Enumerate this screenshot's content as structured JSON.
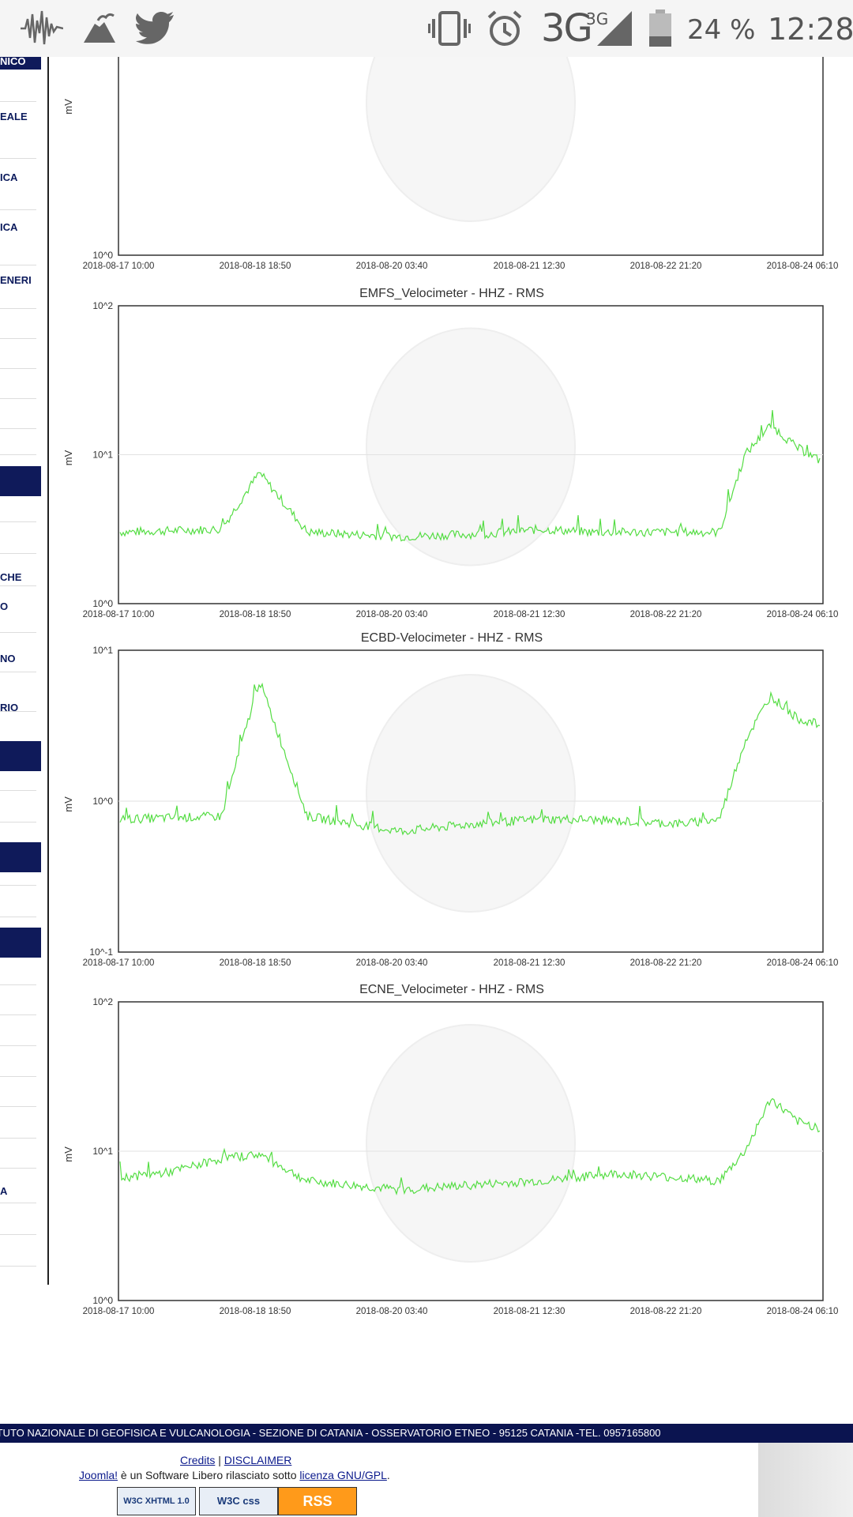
{
  "status_bar": {
    "network": "3G",
    "network_sup": "3G",
    "battery": "24 %",
    "time": "12:28",
    "icons": [
      "seismograph-icon",
      "volcano-icon",
      "twitter-icon",
      "vibrate-icon",
      "alarm-icon",
      "signal-icon",
      "battery-icon"
    ]
  },
  "sidebar": {
    "items": [
      {
        "label": "NICO",
        "y": 0
      },
      {
        "label": "EALE",
        "y": 1
      },
      {
        "label": "ICA",
        "y": 2
      },
      {
        "label": "ICA",
        "y": 3
      },
      {
        "label": "ENERI",
        "y": 4
      },
      {
        "label": "CHE",
        "y": 5
      },
      {
        "label": "O",
        "y": 6
      },
      {
        "label": "NO",
        "y": 7
      },
      {
        "label": "RIO",
        "y": 8
      },
      {
        "label": "A",
        "y": 9
      }
    ]
  },
  "x_ticks": [
    "2018-08-17 10:00",
    "2018-08-18 18:50",
    "2018-08-20 03:40",
    "2018-08-21 12:30",
    "2018-08-22 21:20",
    "2018-08-24 06:10"
  ],
  "chart_data": [
    {
      "type": "line",
      "title": "",
      "ylabel": "mV",
      "y_scale": "log",
      "y_ticks": [
        "10^0"
      ],
      "series": []
    },
    {
      "type": "line",
      "title": "EMFS_Velocimeter - HHZ - RMS",
      "ylabel": "mV",
      "y_scale": "log",
      "ylim": [
        0,
        2
      ],
      "y_ticks": [
        "10^2",
        "10^1",
        "10^0"
      ],
      "series": [
        {
          "color": "#55dd44",
          "x": [
            "2018-08-17 10:00",
            "2018-08-18 10:00",
            "2018-08-18 18:50",
            "2018-08-19 06:00",
            "2018-08-20 03:40",
            "2018-08-21 00:00",
            "2018-08-21 12:30",
            "2018-08-22 00:00",
            "2018-08-22 21:20",
            "2018-08-23 06:00",
            "2018-08-23 12:00",
            "2018-08-23 18:00",
            "2018-08-24 00:00",
            "2018-08-24 06:10"
          ],
          "values": [
            0.48,
            0.5,
            0.88,
            0.48,
            0.45,
            0.47,
            0.5,
            0.48,
            0.48,
            0.48,
            1.0,
            1.2,
            1.05,
            0.95
          ]
        }
      ]
    },
    {
      "type": "line",
      "title": "ECBD-Velocimeter - HHZ - RMS",
      "ylabel": "mV",
      "y_scale": "log",
      "ylim": [
        -1,
        1
      ],
      "y_ticks": [
        "10^1",
        "10^0",
        "10^-1"
      ],
      "series": [
        {
          "color": "#55dd44",
          "x": [
            "2018-08-17 10:00",
            "2018-08-18 10:00",
            "2018-08-18 18:50",
            "2018-08-19 06:00",
            "2018-08-20 03:40",
            "2018-08-20 21:00",
            "2018-08-21 12:30",
            "2018-08-21 21:00",
            "2018-08-22 21:20",
            "2018-08-23 06:00",
            "2018-08-23 12:00",
            "2018-08-23 18:00",
            "2018-08-24 00:00",
            "2018-08-24 06:10"
          ],
          "values": [
            -0.12,
            -0.1,
            0.8,
            -0.1,
            -0.2,
            -0.15,
            -0.12,
            -0.12,
            -0.15,
            -0.12,
            0.4,
            0.7,
            0.55,
            0.5
          ]
        }
      ]
    },
    {
      "type": "line",
      "title": "ECNE_Velocimeter - HHZ - RMS",
      "ylabel": "mV",
      "y_scale": "log",
      "ylim": [
        0,
        2
      ],
      "y_ticks": [
        "10^2",
        "10^1",
        "10^0"
      ],
      "series": [
        {
          "color": "#55dd44",
          "x": [
            "2018-08-17 10:00",
            "2018-08-17 22:00",
            "2018-08-18 10:00",
            "2018-08-18 18:50",
            "2018-08-19 06:00",
            "2018-08-20 03:40",
            "2018-08-21 00:00",
            "2018-08-21 12:30",
            "2018-08-22 06:00",
            "2018-08-22 21:20",
            "2018-08-23 06:00",
            "2018-08-23 12:00",
            "2018-08-23 18:00",
            "2018-08-24 00:00",
            "2018-08-24 06:10"
          ],
          "values": [
            0.82,
            0.86,
            0.95,
            0.98,
            0.8,
            0.74,
            0.78,
            0.8,
            0.85,
            0.82,
            0.8,
            1.0,
            1.35,
            1.2,
            1.15
          ]
        }
      ]
    }
  ],
  "footer": {
    "band_text": "ITUTO NAZIONALE DI GEOFISICA E VULCANOLOGIA - SEZIONE DI CATANIA - OSSERVATORIO ETNEO - 95125 CATANIA -TEL. 0957165800",
    "credits": "Credits",
    "separator": "|",
    "disclaimer": "DISCLAIMER",
    "joomla_link": "Joomla!",
    "joomla_text": " è un Software Libero rilasciato sotto ",
    "license_link": "licenza GNU/GPL",
    "license_end": ".",
    "badges": [
      "W3C XHTML 1.0",
      "W3C css",
      "RSS"
    ]
  }
}
